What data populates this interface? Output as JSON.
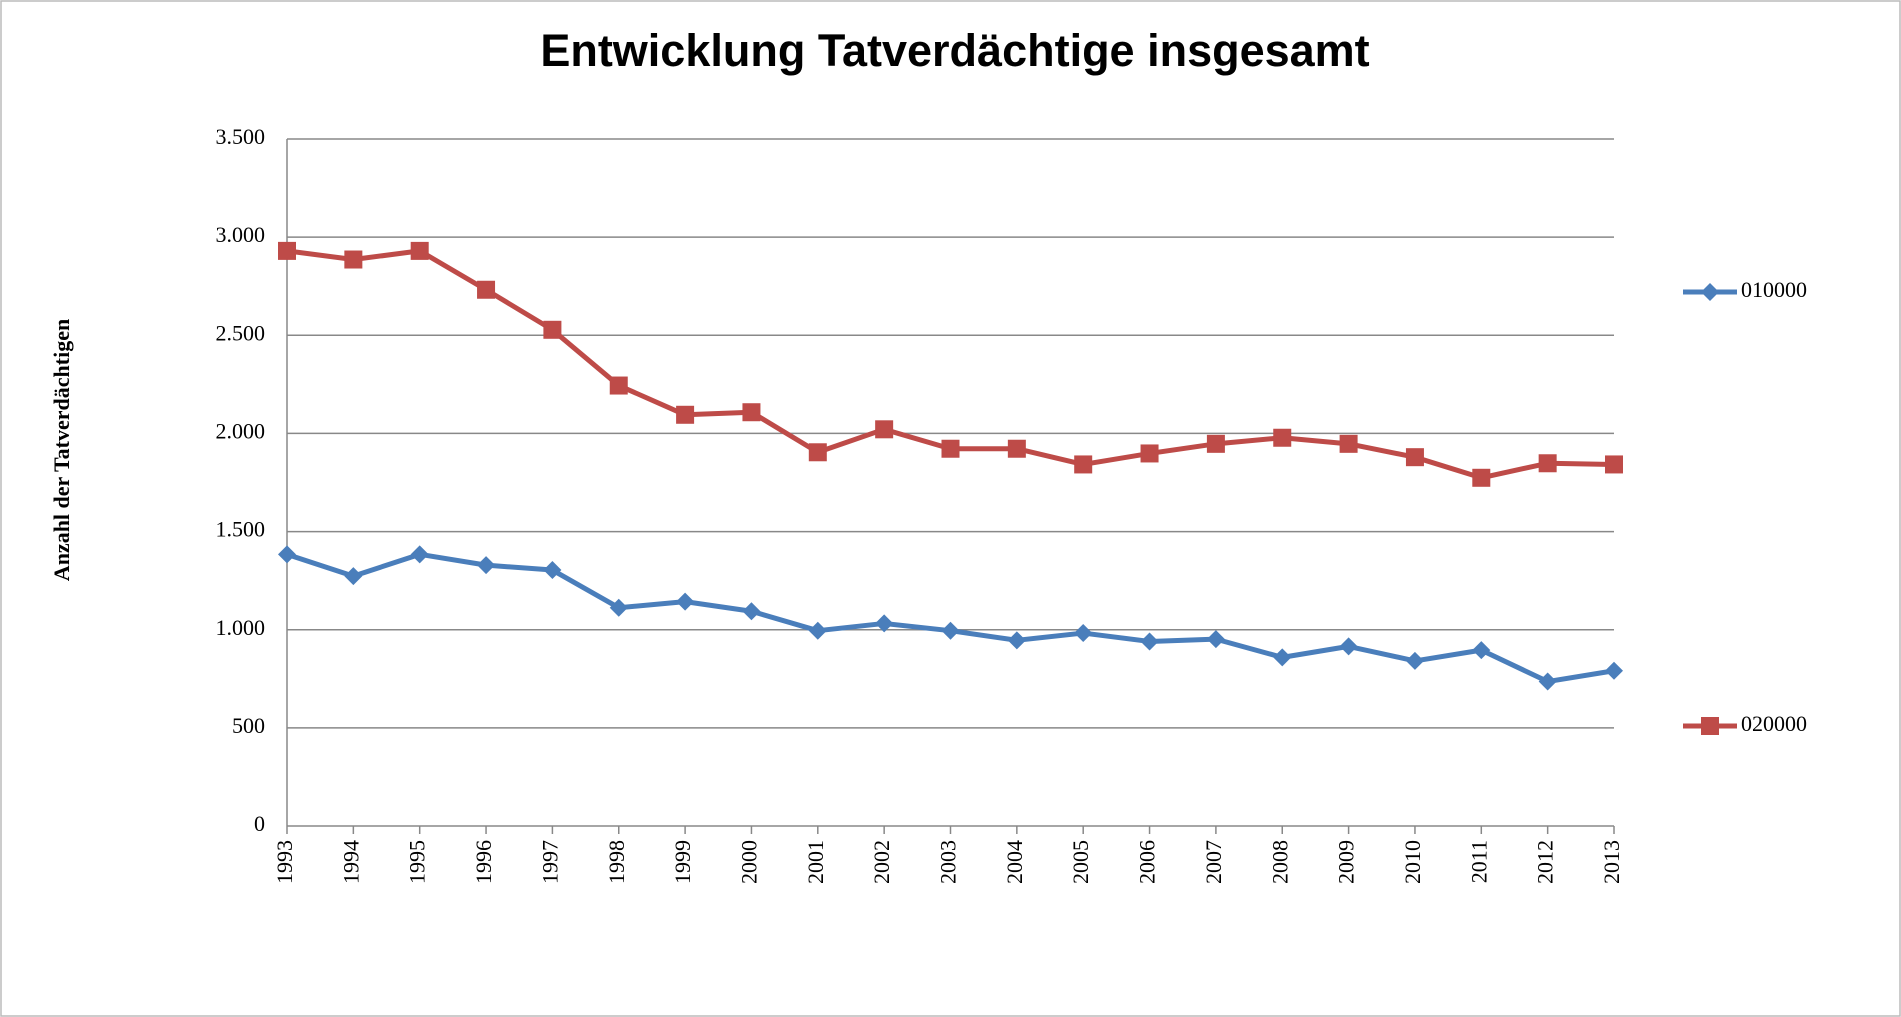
{
  "chart_data": {
    "type": "line",
    "title": "Entwicklung Tatverdächtige insgesamt",
    "y_label": "Anzahl der Tatverdächtigen",
    "categories": [
      "1993",
      "1994",
      "1995",
      "1996",
      "1997",
      "1998",
      "1999",
      "2000",
      "2001",
      "2002",
      "2003",
      "2004",
      "2005",
      "2006",
      "2007",
      "2008",
      "2009",
      "2010",
      "2011",
      "2012",
      "2013"
    ],
    "series": [
      {
        "name": "010000",
        "color": "#4a7ebb",
        "marker": "diamond",
        "values": [
          1384,
          1273,
          1384,
          1329,
          1304,
          1112,
          1143,
          1094,
          995,
          1032,
          995,
          946,
          983,
          940,
          952,
          859,
          915,
          841,
          896,
          736,
          791
        ]
      },
      {
        "name": "020000",
        "color": "#be4b48",
        "marker": "square",
        "values": [
          2930,
          2886,
          2930,
          2732,
          2528,
          2244,
          2095,
          2108,
          1904,
          2021,
          1922,
          1922,
          1842,
          1898,
          1947,
          1978,
          1947,
          1879,
          1774,
          1848,
          1842
        ]
      }
    ],
    "ylim": [
      0,
      3500
    ],
    "yticks": [
      0,
      500,
      {
        "value": 1000,
        "label": "1.000"
      },
      {
        "value": 1500,
        "label": "1.500"
      },
      {
        "value": 2000,
        "label": "2.000"
      },
      {
        "value": 2500,
        "label": "2.500"
      },
      {
        "value": 3000,
        "label": "3.000"
      },
      {
        "value": 3500,
        "label": "3.500"
      }
    ],
    "grid": true,
    "legend": "right"
  }
}
